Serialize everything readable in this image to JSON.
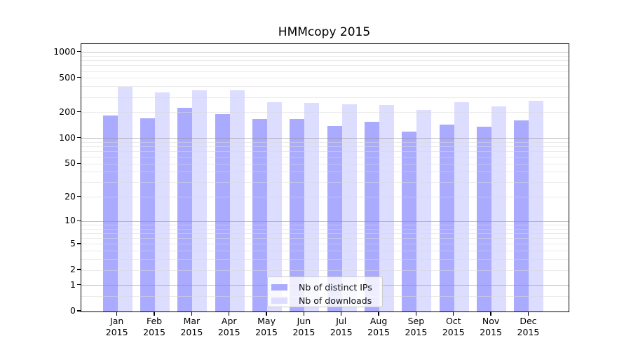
{
  "chart_data": {
    "type": "bar",
    "title": "HMMcopy 2015",
    "categories": [
      "Jan 2015",
      "Feb 2015",
      "Mar 2015",
      "Apr 2015",
      "May 2015",
      "Jun 2015",
      "Jul 2015",
      "Aug 2015",
      "Sep 2015",
      "Oct 2015",
      "Nov 2015",
      "Dec 2015"
    ],
    "series": [
      {
        "name": "Nb of distinct IPs",
        "color": "#aaaaff",
        "values": [
          185,
          172,
          225,
          192,
          169,
          169,
          140,
          156,
          119,
          146,
          138,
          162
        ]
      },
      {
        "name": "Nb of downloads",
        "color": "#ddddff",
        "values": [
          400,
          340,
          362,
          362,
          262,
          258,
          247,
          245,
          214,
          266,
          235,
          275
        ]
      }
    ],
    "yscale": "log1p",
    "ylim": [
      0,
      1244
    ],
    "yticks": [
      0,
      1,
      2,
      5,
      10,
      20,
      50,
      100,
      200,
      500,
      1000
    ],
    "major_gridlines": [
      1,
      10,
      100,
      1000
    ],
    "minor_gridlines": [
      0.5,
      2,
      3,
      4,
      5,
      6,
      7,
      8,
      9,
      20,
      30,
      40,
      50,
      60,
      70,
      80,
      90,
      200,
      300,
      400,
      500,
      600,
      700,
      800,
      900
    ],
    "grid": true,
    "legend_position": "lower center",
    "colors": {
      "grid_major": "#8f8f8f",
      "grid_minor": "#d9d9d9",
      "axis": "#000000",
      "text": "#000000"
    }
  }
}
